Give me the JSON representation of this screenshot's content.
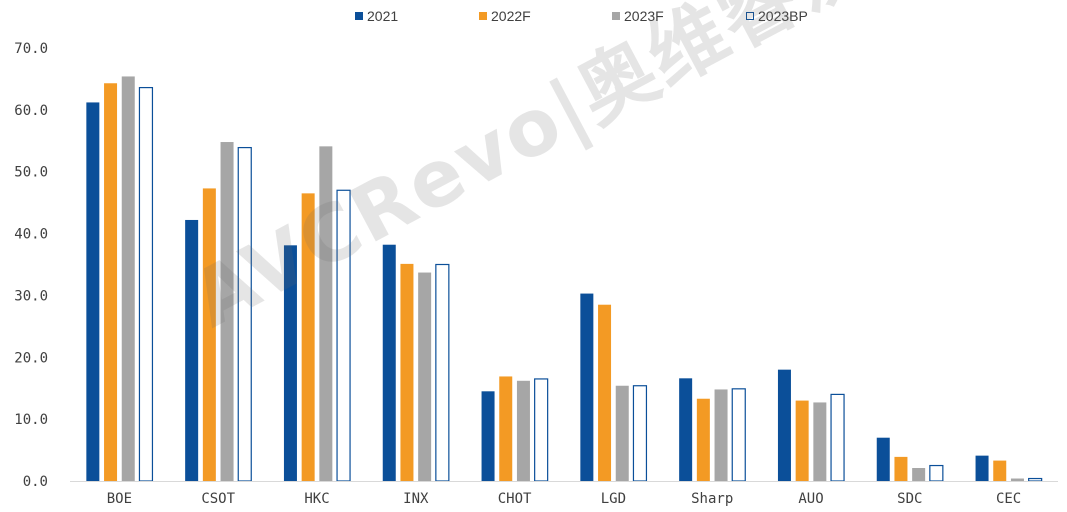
{
  "watermark": "AVCRevo|奥维睿沃",
  "colors": {
    "2021": "#0b4f99",
    "2022F": "#f39a24",
    "2023F": "#a6a6a6",
    "2023BP_stroke": "#0b4f99",
    "2023BP_fill": "#ffffff",
    "axis": "#d9d9d9",
    "text": "#404040"
  },
  "chart_data": {
    "type": "bar",
    "title": "",
    "xlabel": "",
    "ylabel": "",
    "ylim": [
      0,
      70
    ],
    "yticks": [
      "0.0",
      "10.0",
      "20.0",
      "30.0",
      "40.0",
      "50.0",
      "60.0",
      "70.0"
    ],
    "grid": false,
    "legend_position": "top",
    "categories": [
      "BOE",
      "CSOT",
      "HKC",
      "INX",
      "CHOT",
      "LGD",
      "Sharp",
      "AUO",
      "SDC",
      "CEC"
    ],
    "series": [
      {
        "name": "2021",
        "values": [
          61.2,
          42.2,
          38.1,
          38.2,
          14.5,
          30.3,
          16.6,
          18.0,
          7.0,
          4.1
        ]
      },
      {
        "name": "2022F",
        "values": [
          64.3,
          47.3,
          46.5,
          35.1,
          16.9,
          28.5,
          13.3,
          13.0,
          3.9,
          3.3
        ]
      },
      {
        "name": "2023F",
        "values": [
          65.4,
          54.8,
          54.1,
          33.7,
          16.2,
          15.4,
          14.8,
          12.7,
          2.1,
          0.4
        ]
      },
      {
        "name": "2023BP",
        "values": [
          63.6,
          53.9,
          47.0,
          35.0,
          16.5,
          15.4,
          14.9,
          14.0,
          2.5,
          0.4
        ]
      }
    ]
  }
}
